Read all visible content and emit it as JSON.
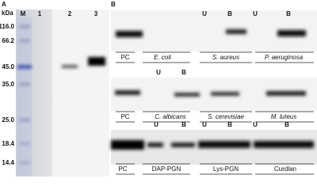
{
  "panel_a": {
    "label": "A",
    "unit": "kDa",
    "lanes": [
      "M",
      "1",
      "2",
      "3"
    ],
    "markers": [
      "116.0",
      "66.2",
      "45.0",
      "35.0",
      "25.0",
      "18.4",
      "14.4"
    ]
  },
  "panel_b": {
    "label": "B",
    "blots": [
      {
        "lane_labels": [
          "U",
          "B",
          "U",
          "B"
        ],
        "groups": [
          "PC",
          "E. coli",
          "S. aureus",
          "P. aeruginosa"
        ]
      },
      {
        "lane_labels": [
          "U",
          "B"
        ],
        "groups": [
          "PC",
          "C. albicans",
          "S. cerevisiae",
          "M. luteus"
        ]
      },
      {
        "lane_labels": [
          "U",
          "B",
          "U",
          "B",
          "U",
          "B"
        ],
        "groups": [
          "PC",
          "DAP-PGN",
          "Lys-PGN",
          "Curdlan"
        ]
      }
    ]
  }
}
